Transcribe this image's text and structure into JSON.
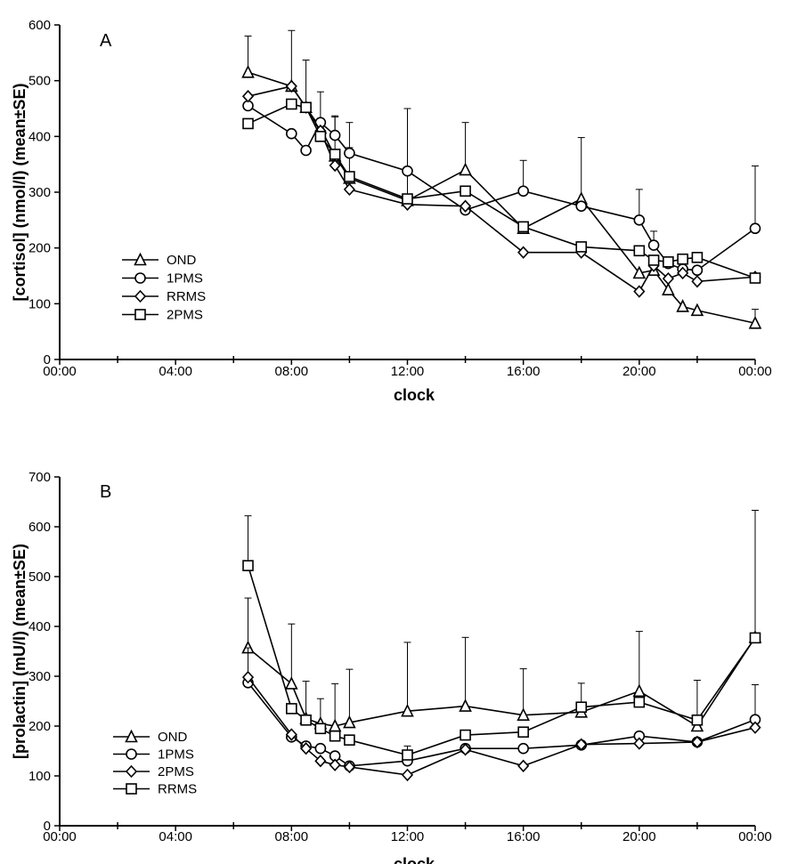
{
  "chart_data": [
    {
      "type": "line",
      "panel_label": "A",
      "xlabel": "clock",
      "ylabel": "[cortisol] (nmol/l) (mean±SE)",
      "xlim": [
        0,
        24
      ],
      "ylim": [
        0,
        600
      ],
      "x_ticks": [
        {
          "value": 0,
          "label": "00:00"
        },
        {
          "value": 4,
          "label": "04:00"
        },
        {
          "value": 8,
          "label": "08:00"
        },
        {
          "value": 12,
          "label": "12:00"
        },
        {
          "value": 16,
          "label": "16:00"
        },
        {
          "value": 20,
          "label": "20:00"
        },
        {
          "value": 24,
          "label": "00:00"
        }
      ],
      "minor_x_ticks": [
        2,
        6,
        10,
        14,
        18,
        22
      ],
      "y_ticks": [
        0,
        100,
        200,
        300,
        400,
        500,
        600
      ],
      "legend_position": "left-bottom",
      "series": [
        {
          "name": "OND",
          "marker": "triangle",
          "x": [
            6.5,
            8,
            8.5,
            9,
            9.5,
            10,
            12,
            14,
            16,
            18,
            20,
            20.5,
            21,
            21.5,
            22,
            24
          ],
          "y": [
            515,
            490,
            452,
            415,
            365,
            325,
            285,
            340,
            235,
            288,
            155,
            160,
            125,
            95,
            88,
            65
          ],
          "err": [
            65,
            100,
            85,
            65,
            70,
            55,
            165,
            85,
            0,
            110,
            0,
            0,
            0,
            0,
            0,
            25
          ]
        },
        {
          "name": "1PMS",
          "marker": "circle",
          "x": [
            6.5,
            8,
            8.5,
            9,
            9.5,
            10,
            12,
            14,
            16,
            18,
            20,
            20.5,
            21,
            21.5,
            22,
            24
          ],
          "y": [
            455,
            405,
            375,
            425,
            402,
            370,
            338,
            268,
            302,
            275,
            250,
            205,
            172,
            162,
            160,
            235
          ],
          "err": [
            0,
            0,
            0,
            0,
            35,
            55,
            0,
            0,
            55,
            0,
            55,
            25,
            0,
            0,
            0,
            112
          ]
        },
        {
          "name": "RRMS",
          "marker": "diamond",
          "x": [
            6.5,
            8,
            8.5,
            9,
            9.5,
            10,
            12,
            14,
            16,
            18,
            20,
            20.5,
            21,
            21.5,
            22,
            24
          ],
          "y": [
            472,
            490,
            452,
            410,
            348,
            305,
            278,
            275,
            192,
            192,
            122,
            168,
            145,
            155,
            140,
            148
          ],
          "err": [
            0,
            0,
            0,
            0,
            0,
            0,
            0,
            0,
            0,
            0,
            0,
            0,
            0,
            0,
            0,
            0
          ]
        },
        {
          "name": "2PMS",
          "marker": "square",
          "x": [
            6.5,
            8,
            8.5,
            9,
            9.5,
            10,
            12,
            14,
            16,
            18,
            20,
            20.5,
            21,
            21.5,
            22,
            24
          ],
          "y": [
            423,
            458,
            452,
            400,
            368,
            328,
            288,
            302,
            238,
            202,
            195,
            178,
            175,
            180,
            183,
            146
          ],
          "err": [
            0,
            0,
            0,
            0,
            0,
            0,
            0,
            0,
            0,
            0,
            0,
            0,
            0,
            0,
            0,
            0
          ]
        }
      ]
    },
    {
      "type": "line",
      "panel_label": "B",
      "xlabel": "clock",
      "ylabel": "[prolactin] (mU/l) (mean±SE)",
      "xlim": [
        0,
        24
      ],
      "ylim": [
        0,
        700
      ],
      "x_ticks": [
        {
          "value": 0,
          "label": "00:00"
        },
        {
          "value": 4,
          "label": "04:00"
        },
        {
          "value": 8,
          "label": "08:00"
        },
        {
          "value": 12,
          "label": "12:00"
        },
        {
          "value": 16,
          "label": "16:00"
        },
        {
          "value": 20,
          "label": "20:00"
        },
        {
          "value": 24,
          "label": "00:00"
        }
      ],
      "minor_x_ticks": [
        2,
        6,
        10,
        14,
        18,
        22
      ],
      "y_ticks": [
        0,
        100,
        200,
        300,
        400,
        500,
        600,
        700
      ],
      "legend_position": "left-bottom",
      "series": [
        {
          "name": "OND",
          "marker": "triangle",
          "x": [
            6.5,
            8,
            8.5,
            9,
            9.5,
            10,
            12,
            14,
            16,
            18,
            20,
            22,
            24
          ],
          "y": [
            357,
            285,
            215,
            205,
            200,
            207,
            230,
            240,
            222,
            228,
            270,
            200,
            378
          ],
          "err": [
            100,
            120,
            75,
            50,
            85,
            107,
            138,
            138,
            93,
            58,
            120,
            92,
            255
          ]
        },
        {
          "name": "1PMS",
          "marker": "circle",
          "x": [
            6.5,
            8,
            8.5,
            9,
            9.5,
            10,
            12,
            14,
            16,
            18,
            20,
            22,
            24
          ],
          "y": [
            287,
            178,
            160,
            155,
            140,
            120,
            130,
            155,
            155,
            162,
            180,
            168,
            213
          ],
          "err": [
            70,
            0,
            0,
            0,
            0,
            0,
            30,
            0,
            0,
            0,
            0,
            0,
            70
          ]
        },
        {
          "name": "2PMS",
          "marker": "diamond",
          "x": [
            6.5,
            8,
            8.5,
            9,
            9.5,
            10,
            12,
            14,
            16,
            18,
            20,
            22,
            24
          ],
          "y": [
            298,
            183,
            155,
            130,
            122,
            118,
            102,
            153,
            120,
            163,
            165,
            168,
            197
          ],
          "err": [
            0,
            0,
            0,
            0,
            0,
            0,
            0,
            0,
            0,
            0,
            0,
            0,
            0
          ]
        },
        {
          "name": "RRMS",
          "marker": "square",
          "x": [
            6.5,
            8,
            8.5,
            9,
            9.5,
            10,
            12,
            14,
            16,
            18,
            20,
            22,
            24
          ],
          "y": [
            522,
            235,
            212,
            195,
            180,
            172,
            142,
            182,
            188,
            238,
            248,
            212,
            377
          ],
          "err": [
            100,
            0,
            0,
            0,
            0,
            0,
            0,
            0,
            0,
            0,
            0,
            0,
            0
          ]
        }
      ]
    }
  ]
}
